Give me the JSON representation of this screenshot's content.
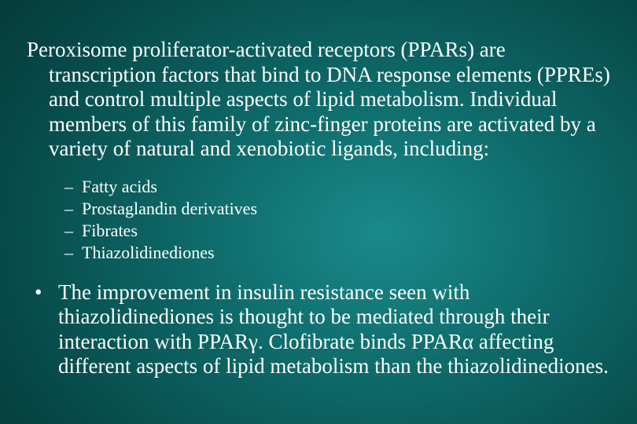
{
  "colors": {
    "text": "#ffffff",
    "bg_center": "#1a8a8a",
    "bg_outer": "#022222"
  },
  "typography": {
    "family": "Times New Roman",
    "body_size_pt": 20,
    "sublist_size_pt": 16
  },
  "main_paragraph": "Peroxisome proliferator-activated receptors (PPARs) are transcription factors that bind to DNA response elements (PPREs) and control multiple aspects of lipid metabolism. Individual members of this family of zinc-finger proteins are activated by a variety of natural and xenobiotic ligands, including:",
  "sublist": [
    "Fatty acids",
    "Prostaglandin derivatives",
    "Fibrates",
    "Thiazolidinediones"
  ],
  "bullet_marker": "•",
  "bullet_paragraph": "The improvement in insulin resistance seen with thiazolidinediones is thought to be mediated through their interaction with PPARγ. Clofibrate binds PPARα affecting different aspects of lipid metabolism than the thiazolidinediones."
}
